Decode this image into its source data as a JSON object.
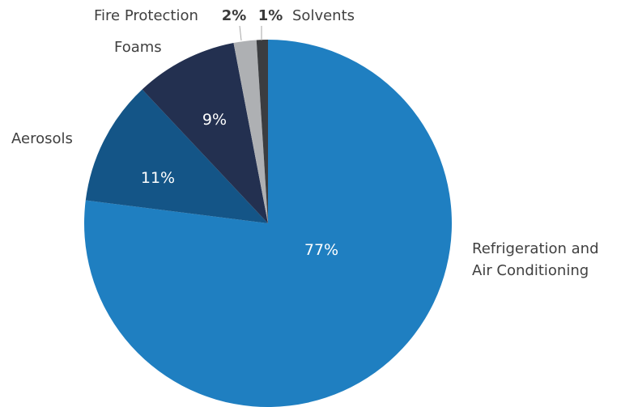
{
  "chart_data": {
    "type": "pie",
    "title": "",
    "slices": [
      {
        "label_lines": [
          "Refrigeration and",
          "Air Conditioning"
        ],
        "value": 77,
        "value_label": "77%",
        "color": "#1f7fc1"
      },
      {
        "label_lines": [
          "Aerosols"
        ],
        "value": 11,
        "value_label": "11%",
        "color": "#145587"
      },
      {
        "label_lines": [
          "Foams"
        ],
        "value": 9,
        "value_label": "9%",
        "color": "#233050"
      },
      {
        "label_lines": [
          "Fire Protection"
        ],
        "value": 2,
        "value_label": "2%",
        "color": "#aeb0b3"
      },
      {
        "label_lines": [
          "Solvents"
        ],
        "value": 1,
        "value_label": "1%",
        "color": "#3b3d40"
      }
    ],
    "legend": "none"
  }
}
